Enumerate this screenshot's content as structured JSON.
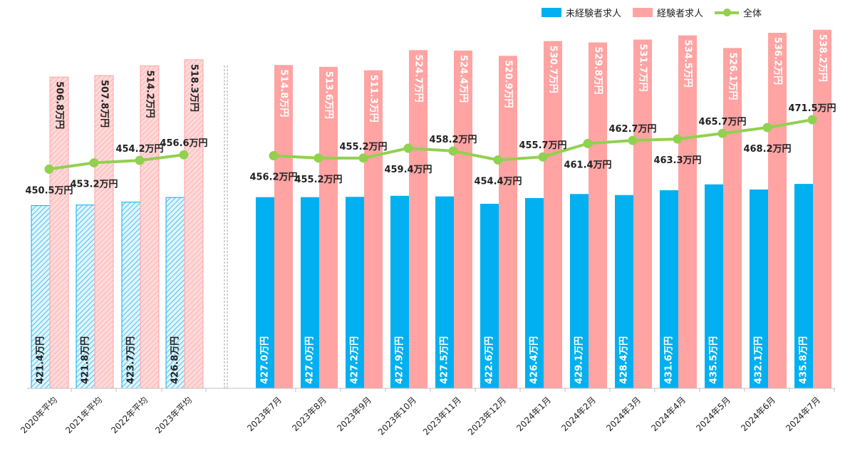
{
  "colors": {
    "inexperienced": "#00b0f0",
    "experienced": "#ffa3a3",
    "overall": "#92d050",
    "axis": "#bfbfbf",
    "text": "#222222"
  },
  "legend": {
    "inexperienced": "未経験者求人",
    "experienced": "経験者求人",
    "overall": "全体"
  },
  "chart_data": {
    "type": "bar",
    "title": "",
    "xlabel": "",
    "ylabel": "",
    "legend_position": "top-right",
    "grid": false,
    "unit_suffix": "万円",
    "ylim": [
      300,
      540
    ],
    "categories": [
      "2020年平均",
      "2021年平均",
      "2022年平均",
      "2023年平均",
      "2023年7月",
      "2023年8月",
      "2023年9月",
      "2023年10月",
      "2023年11月",
      "2023年12月",
      "2024年1月",
      "2024年2月",
      "2024年3月",
      "2024年4月",
      "2024年5月",
      "2024年6月",
      "2024年7月"
    ],
    "category_groups": [
      "annual_average",
      "annual_average",
      "annual_average",
      "annual_average",
      "monthly",
      "monthly",
      "monthly",
      "monthly",
      "monthly",
      "monthly",
      "monthly",
      "monthly",
      "monthly",
      "monthly",
      "monthly",
      "monthly",
      "monthly"
    ],
    "series": [
      {
        "key": "inexperienced",
        "name": "未経験者求人",
        "type": "bar",
        "values": [
          421.4,
          421.8,
          423.7,
          426.8,
          427.0,
          427.0,
          427.2,
          427.9,
          427.5,
          422.6,
          426.4,
          429.1,
          428.4,
          431.6,
          435.5,
          432.1,
          435.8
        ],
        "labels": [
          "421.4万円",
          "421.8万円",
          "423.7万円",
          "426.8万円",
          "427.0万円",
          "427.0万円",
          "427.2万円",
          "427.9万円",
          "427.5万円",
          "422.6万円",
          "426.4万円",
          "429.1万円",
          "428.4万円",
          "431.6万円",
          "435.5万円",
          "432.1万円",
          "435.8万円"
        ]
      },
      {
        "key": "experienced",
        "name": "経験者求人",
        "type": "bar",
        "values": [
          506.8,
          507.8,
          514.2,
          518.3,
          514.8,
          513.6,
          511.3,
          524.7,
          524.4,
          520.9,
          530.7,
          529.8,
          531.7,
          534.5,
          526.1,
          536.2,
          538.2
        ],
        "labels": [
          "506.8万円",
          "507.8万円",
          "514.2万円",
          "518.3万円",
          "514.8万円",
          "513.6万円",
          "511.3万円",
          "524.7万円",
          "524.4万円",
          "520.9万円",
          "530.7万円",
          "529.8万円",
          "531.7万円",
          "534.5万円",
          "526.1万円",
          "536.2万円",
          "538.2万円"
        ]
      },
      {
        "key": "overall",
        "name": "全体",
        "type": "line",
        "values": [
          450.5,
          453.2,
          454.2,
          456.6,
          456.2,
          455.2,
          455.2,
          459.4,
          458.2,
          454.4,
          455.7,
          461.4,
          462.7,
          463.3,
          465.7,
          468.2,
          471.5
        ],
        "labels": [
          "450.5万円",
          "453.2万円",
          "454.2万円",
          "456.6万円",
          "456.2万円",
          "455.2万円",
          "455.2万円",
          "459.4万円",
          "458.2万円",
          "454.4万円",
          "455.7万円",
          "461.4万円",
          "462.7万円",
          "463.3万円",
          "465.7万円",
          "468.2万円",
          "471.5万円"
        ]
      }
    ]
  }
}
